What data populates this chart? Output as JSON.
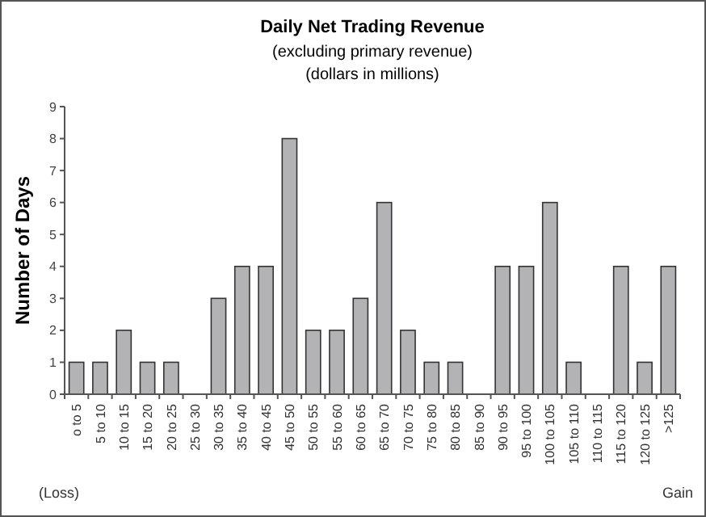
{
  "chart_data": {
    "type": "bar",
    "title": "Daily Net Trading Revenue",
    "subtitle": "(excluding primary revenue)\n(dollars in millions)",
    "ylabel": "Number of Days",
    "categories": [
      "o to 5",
      "5 to 10",
      "10 to 15",
      "15 to 20",
      "20 to 25",
      "25 to 30",
      "30 to 35",
      "35 to 40",
      "40 to 45",
      "45 to 50",
      "50 to 55",
      "55 to 60",
      "60 to 65",
      "65 to 70",
      "70 to 75",
      "75 to 80",
      "80 to 85",
      "85 to 90",
      "90 to 95",
      "95 to 100",
      "100 to 105",
      "105 to 110",
      "110 to 115",
      "115 to 120",
      "120 to 125",
      ">125"
    ],
    "values": [
      1,
      1,
      2,
      1,
      1,
      0,
      3,
      4,
      4,
      8,
      2,
      2,
      3,
      6,
      2,
      1,
      1,
      0,
      4,
      4,
      6,
      1,
      0,
      4,
      1,
      4
    ],
    "color": "#b3b3b5",
    "ylim": [
      0,
      9
    ],
    "yticks": [
      0,
      1,
      2,
      3,
      4,
      5,
      6,
      7,
      8,
      9
    ],
    "grid": false,
    "annotations": [
      "(Loss)",
      "Gain"
    ]
  }
}
